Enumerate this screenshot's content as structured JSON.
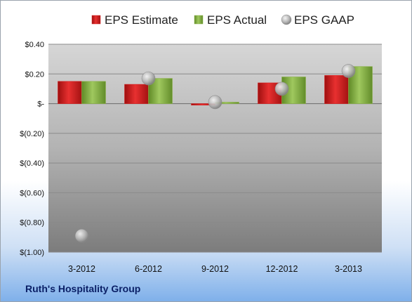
{
  "chart_data": {
    "type": "bar",
    "title": "",
    "categories": [
      "3-2012",
      "6-2012",
      "9-2012",
      "12-2012",
      "3-2013"
    ],
    "series": [
      {
        "name": "EPS Estimate",
        "kind": "bar",
        "color": "#d42020",
        "values": [
          0.15,
          0.13,
          -0.01,
          0.14,
          0.19
        ]
      },
      {
        "name": "EPS Actual",
        "kind": "bar",
        "color": "#8cb24a",
        "values": [
          0.15,
          0.17,
          0.01,
          0.18,
          0.25
        ]
      },
      {
        "name": "EPS GAAP",
        "kind": "marker",
        "color": "#b5b5b5",
        "values": [
          -0.89,
          0.17,
          0.01,
          0.1,
          0.22
        ]
      }
    ],
    "y_ticks": [
      {
        "value": 0.4,
        "label": "$0.40"
      },
      {
        "value": 0.2,
        "label": "$0.20"
      },
      {
        "value": 0,
        "label": "$-"
      },
      {
        "value": -0.2,
        "label": "$(0.20)"
      },
      {
        "value": -0.4,
        "label": "$(0.40)"
      },
      {
        "value": -0.6,
        "label": "$(0.60)"
      },
      {
        "value": -0.8,
        "label": "$(0.80)"
      },
      {
        "value": -1.0,
        "label": "$(1.00)"
      }
    ],
    "ylim": [
      -1.0,
      0.4
    ],
    "legend_position": "top",
    "grid": true
  },
  "company": "Ruth's Hospitality Group"
}
